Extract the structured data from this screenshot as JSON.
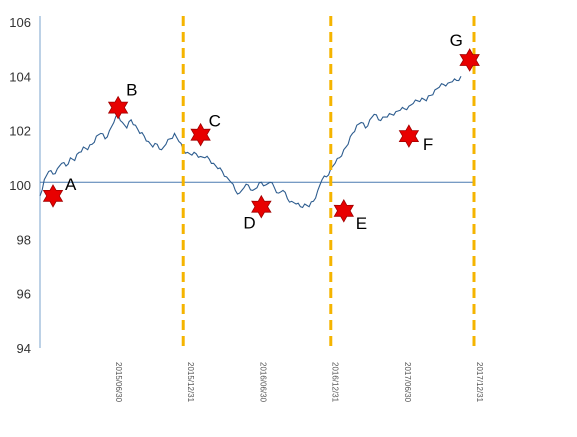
{
  "chart_data": {
    "type": "line",
    "title": "",
    "xlabel": "",
    "ylabel": "",
    "ylim": [
      94,
      106
    ],
    "yticks": [
      "94",
      "96",
      "98",
      "100",
      "102",
      "104",
      "106"
    ],
    "xticks": [
      "2015/06/30",
      "2015/12/31",
      "2016/06/30",
      "2016/12/31",
      "2017/06/30",
      "2017/12/31"
    ],
    "x_range": [
      0,
      100
    ],
    "series": [
      {
        "values": [
          [
            0,
            99.6
          ],
          [
            1,
            100.2
          ],
          [
            2,
            100.5
          ],
          [
            3,
            100.4
          ],
          [
            4,
            100.6
          ],
          [
            5,
            100.8
          ],
          [
            6,
            100.7
          ],
          [
            7,
            101.0
          ],
          [
            8,
            100.9
          ],
          [
            9,
            101.2
          ],
          [
            10,
            101.4
          ],
          [
            11,
            101.3
          ],
          [
            12,
            101.5
          ],
          [
            13,
            101.8
          ],
          [
            14,
            101.9
          ],
          [
            15,
            101.7
          ],
          [
            16,
            102.0
          ],
          [
            17,
            102.3
          ],
          [
            18,
            102.6
          ],
          [
            19,
            102.3
          ],
          [
            20,
            102.1
          ],
          [
            21,
            102.4
          ],
          [
            22,
            102.2
          ],
          [
            23,
            101.9
          ],
          [
            24,
            101.8
          ],
          [
            25,
            101.6
          ],
          [
            26,
            101.4
          ],
          [
            27,
            101.5
          ],
          [
            28,
            101.3
          ],
          [
            29,
            101.5
          ],
          [
            30,
            101.7
          ],
          [
            31,
            101.9
          ],
          [
            32,
            101.6
          ],
          [
            33,
            101.3
          ],
          [
            34,
            101.2
          ],
          [
            35,
            101.1
          ],
          [
            36,
            101.15
          ],
          [
            37,
            101.05
          ],
          [
            38,
            101.0
          ],
          [
            39,
            100.95
          ],
          [
            40,
            100.8
          ],
          [
            41,
            100.6
          ],
          [
            42,
            100.5
          ],
          [
            43,
            100.3
          ],
          [
            44,
            100.1
          ],
          [
            45,
            99.8
          ],
          [
            46,
            99.7
          ],
          [
            47,
            99.9
          ],
          [
            48,
            100.0
          ],
          [
            49,
            99.8
          ],
          [
            50,
            99.9
          ],
          [
            51,
            100.1
          ],
          [
            52,
            100.0
          ],
          [
            53,
            100.1
          ],
          [
            54,
            99.9
          ],
          [
            55,
            99.7
          ],
          [
            56,
            99.8
          ],
          [
            57,
            99.5
          ],
          [
            58,
            99.4
          ],
          [
            59,
            99.3
          ],
          [
            60,
            99.2
          ],
          [
            61,
            99.3
          ],
          [
            62,
            99.2
          ],
          [
            63,
            99.4
          ],
          [
            64,
            99.8
          ],
          [
            65,
            100.2
          ],
          [
            66,
            100.3
          ],
          [
            67,
            100.6
          ],
          [
            68,
            100.8
          ],
          [
            69,
            101.0
          ],
          [
            70,
            101.3
          ],
          [
            71,
            101.5
          ],
          [
            72,
            101.9
          ],
          [
            73,
            102.2
          ],
          [
            74,
            102.3
          ],
          [
            75,
            102.1
          ],
          [
            76,
            102.4
          ],
          [
            77,
            102.6
          ],
          [
            78,
            102.4
          ],
          [
            79,
            102.5
          ],
          [
            80,
            102.5
          ],
          [
            81,
            102.6
          ],
          [
            82,
            102.7
          ],
          [
            83,
            102.75
          ],
          [
            84,
            102.8
          ],
          [
            85,
            102.9
          ],
          [
            86,
            103.0
          ],
          [
            87,
            103.1
          ],
          [
            88,
            103.2
          ],
          [
            89,
            103.1
          ],
          [
            90,
            103.3
          ],
          [
            91,
            103.5
          ],
          [
            92,
            103.6
          ],
          [
            93,
            103.7
          ],
          [
            94,
            103.75
          ],
          [
            95,
            103.8
          ],
          [
            96,
            103.85
          ],
          [
            97,
            104.0
          ]
        ]
      }
    ],
    "reference_line": 100.1,
    "vertical_lines": [
      33,
      67,
      100
    ],
    "markers": [
      {
        "label": "A",
        "x": 3,
        "y": 99.6
      },
      {
        "label": "B",
        "x": 18,
        "y": 102.85
      },
      {
        "label": "C",
        "x": 37,
        "y": 101.85
      },
      {
        "label": "D",
        "x": 51,
        "y": 99.2
      },
      {
        "label": "E",
        "x": 70,
        "y": 99.05
      },
      {
        "label": "F",
        "x": 85,
        "y": 101.8
      },
      {
        "label": "G",
        "x": 99,
        "y": 104.6
      }
    ],
    "colors": {
      "line": "#2e5d8f",
      "reference": "#4a7ab0",
      "vertical": "#f5b400",
      "marker_fill": "#e80000",
      "marker_stroke": "#a00000",
      "axis": "#7aa3cc"
    },
    "grid": false
  }
}
